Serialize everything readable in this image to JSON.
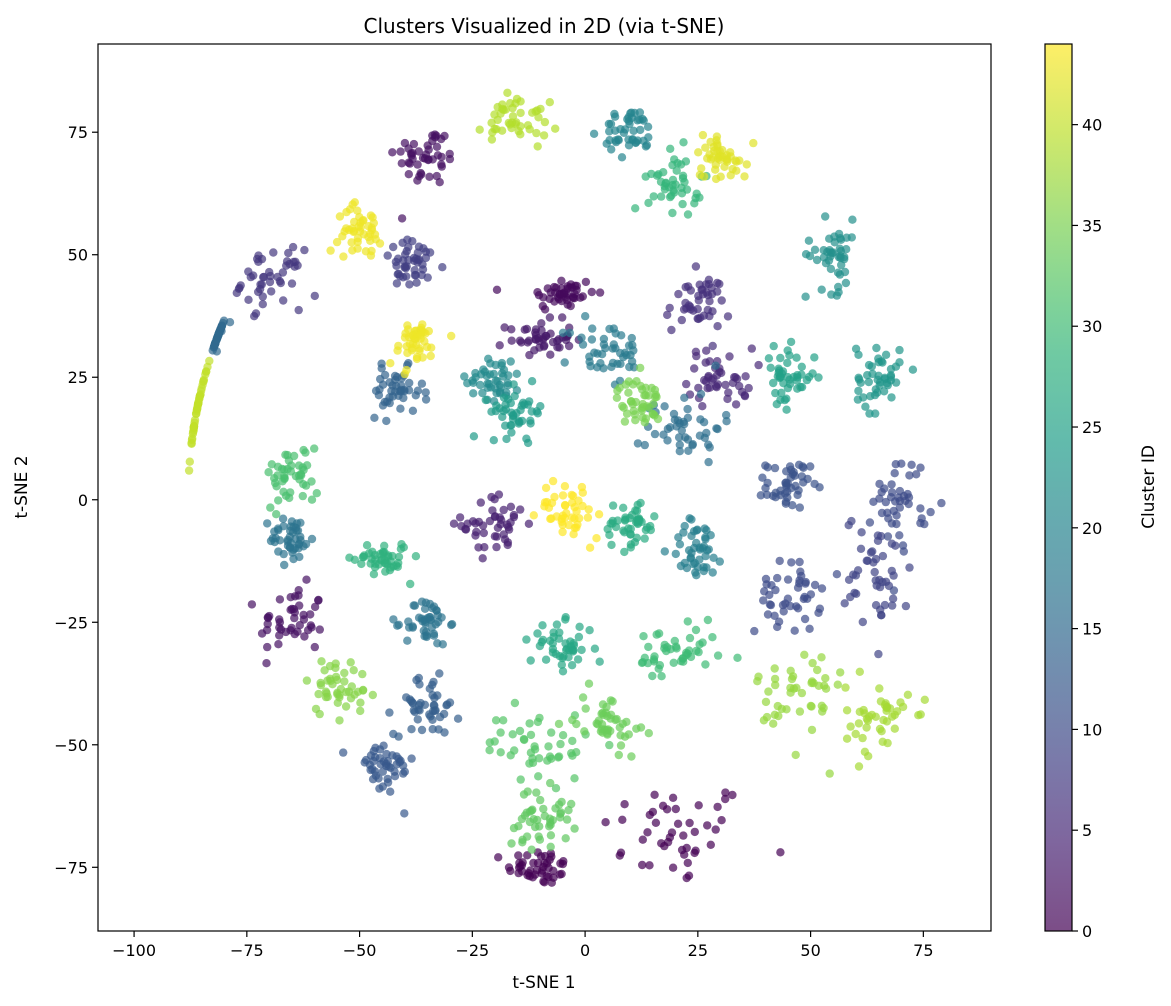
{
  "chart_data": {
    "type": "scatter",
    "title": "Clusters Visualized in 2D (via t-SNE)",
    "xlabel": "t-SNE 1",
    "ylabel": "t-SNE 2",
    "xlim": [
      -108,
      90
    ],
    "ylim": [
      -88,
      93
    ],
    "xticks": [
      -100,
      -75,
      -50,
      -25,
      0,
      25,
      50,
      75
    ],
    "yticks": [
      -75,
      -50,
      -25,
      0,
      25,
      50,
      75
    ],
    "xtick_labels": [
      "−100",
      "−75",
      "−50",
      "−25",
      "0",
      "25",
      "50",
      "75"
    ],
    "ytick_labels": [
      "−75",
      "−50",
      "−25",
      "0",
      "25",
      "50",
      "75"
    ],
    "grid": false,
    "marker_alpha": 0.7,
    "colorbar": {
      "label": "Cluster ID",
      "colormap": "viridis",
      "range": [
        0,
        44
      ],
      "ticks": [
        0,
        5,
        10,
        15,
        20,
        25,
        30,
        35,
        40
      ],
      "tick_labels": [
        "0",
        "5",
        "10",
        "15",
        "20",
        "25",
        "30",
        "35",
        "40"
      ]
    },
    "clusters": [
      {
        "id": 0,
        "x": 20,
        "y": -68,
        "sx": 14,
        "sy": 9
      },
      {
        "id": 0,
        "x": -10,
        "y": -75,
        "sx": 6,
        "sy": 3
      },
      {
        "id": 1,
        "x": -5,
        "y": 42,
        "sx": 6,
        "sy": 3
      },
      {
        "id": 2,
        "x": -35,
        "y": 70,
        "sx": 6,
        "sy": 5
      },
      {
        "id": 2,
        "x": -65,
        "y": -25,
        "sx": 6,
        "sy": 6
      },
      {
        "id": 3,
        "x": -10,
        "y": 33,
        "sx": 6,
        "sy": 3
      },
      {
        "id": 4,
        "x": -20,
        "y": -5,
        "sx": 6,
        "sy": 5
      },
      {
        "id": 5,
        "x": 30,
        "y": 25,
        "sx": 6,
        "sy": 5
      },
      {
        "id": 6,
        "x": 25,
        "y": 40,
        "sx": 6,
        "sy": 5
      },
      {
        "id": 7,
        "x": -70,
        "y": 45,
        "sx": 6,
        "sy": 5
      },
      {
        "id": 8,
        "x": -38,
        "y": 48,
        "sx": 6,
        "sy": 4
      },
      {
        "id": 9,
        "x": 65,
        "y": -15,
        "sx": 6,
        "sy": 10
      },
      {
        "id": 10,
        "x": 45,
        "y": -20,
        "sx": 6,
        "sy": 6
      },
      {
        "id": 10,
        "x": 70,
        "y": 0,
        "sx": 5,
        "sy": 8
      },
      {
        "id": 11,
        "x": 45,
        "y": 3,
        "sx": 4,
        "sy": 4
      },
      {
        "id": 12,
        "x": -45,
        "y": -55,
        "sx": 6,
        "sy": 5
      },
      {
        "id": 13,
        "x": -35,
        "y": -42,
        "sx": 6,
        "sy": 5
      },
      {
        "id": 14,
        "x": -42,
        "y": 22,
        "sx": 5,
        "sy": 4
      },
      {
        "id": 15,
        "x": -85,
        "y": 35,
        "sx": 6,
        "sy": 3
      },
      {
        "id": 16,
        "x": 22,
        "y": 15,
        "sx": 7,
        "sy": 6
      },
      {
        "id": 17,
        "x": -65,
        "y": -8,
        "sx": 4,
        "sy": 4
      },
      {
        "id": 17,
        "x": -35,
        "y": -25,
        "sx": 4,
        "sy": 4
      },
      {
        "id": 18,
        "x": 5,
        "y": 30,
        "sx": 7,
        "sy": 6
      },
      {
        "id": 19,
        "x": 25,
        "y": -10,
        "sx": 5,
        "sy": 5
      },
      {
        "id": 20,
        "x": 10,
        "y": 75,
        "sx": 5,
        "sy": 4
      },
      {
        "id": 21,
        "x": -20,
        "y": 25,
        "sx": 5,
        "sy": 4
      },
      {
        "id": 22,
        "x": 55,
        "y": 50,
        "sx": 5,
        "sy": 6
      },
      {
        "id": 23,
        "x": 65,
        "y": 25,
        "sx": 4,
        "sy": 6
      },
      {
        "id": 24,
        "x": -15,
        "y": 18,
        "sx": 5,
        "sy": 4
      },
      {
        "id": 25,
        "x": 45,
        "y": 25,
        "sx": 5,
        "sy": 5
      },
      {
        "id": 26,
        "x": -5,
        "y": -30,
        "sx": 6,
        "sy": 4
      },
      {
        "id": 27,
        "x": 10,
        "y": -5,
        "sx": 5,
        "sy": 4
      },
      {
        "id": 28,
        "x": -45,
        "y": -12,
        "sx": 5,
        "sy": 3
      },
      {
        "id": 29,
        "x": 20,
        "y": 65,
        "sx": 5,
        "sy": 5
      },
      {
        "id": 30,
        "x": 20,
        "y": -32,
        "sx": 8,
        "sy": 5
      },
      {
        "id": 31,
        "x": -65,
        "y": 5,
        "sx": 5,
        "sy": 5
      },
      {
        "id": 32,
        "x": -10,
        "y": -50,
        "sx": 10,
        "sy": 6
      },
      {
        "id": 33,
        "x": -10,
        "y": -65,
        "sx": 6,
        "sy": 5
      },
      {
        "id": 34,
        "x": 5,
        "y": -45,
        "sx": 6,
        "sy": 5
      },
      {
        "id": 35,
        "x": 12,
        "y": 20,
        "sx": 4,
        "sy": 4
      },
      {
        "id": 36,
        "x": -55,
        "y": -38,
        "sx": 6,
        "sy": 5
      },
      {
        "id": 37,
        "x": 48,
        "y": -40,
        "sx": 8,
        "sy": 10
      },
      {
        "id": 38,
        "x": 65,
        "y": -45,
        "sx": 6,
        "sy": 6
      },
      {
        "id": 39,
        "x": -15,
        "y": 78,
        "sx": 6,
        "sy": 5
      },
      {
        "id": 40,
        "x": -90,
        "y": 20,
        "sx": 4,
        "sy": 8
      },
      {
        "id": 42,
        "x": 30,
        "y": 70,
        "sx": 5,
        "sy": 4
      },
      {
        "id": 43,
        "x": -38,
        "y": 32,
        "sx": 5,
        "sy": 4
      },
      {
        "id": 43,
        "x": -50,
        "y": 55,
        "sx": 4,
        "sy": 4
      },
      {
        "id": 44,
        "x": -3,
        "y": -2,
        "sx": 6,
        "sy": 5
      }
    ]
  }
}
